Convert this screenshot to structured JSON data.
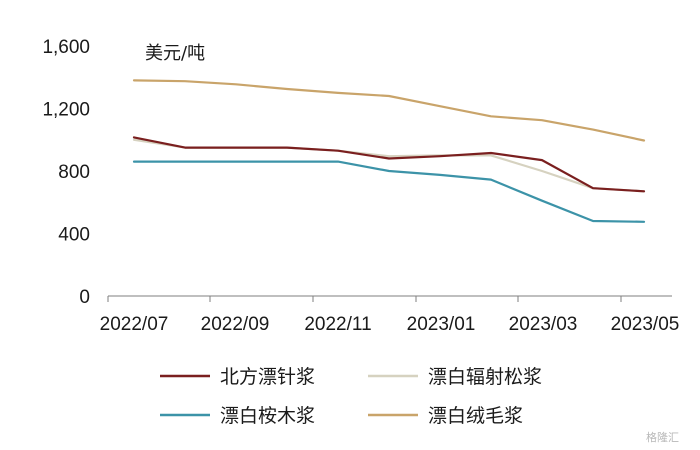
{
  "chart_data": {
    "type": "line",
    "unit_label": "美元/吨",
    "x": [
      "2022/07",
      "2022/08",
      "2022/09",
      "2022/10",
      "2022/11",
      "2022/12",
      "2023/01",
      "2023/02",
      "2023/03",
      "2023/04",
      "2023/05"
    ],
    "x_tick_labels": [
      "2022/07",
      "2022/09",
      "2022/11",
      "2023/01",
      "2023/03",
      "2023/05"
    ],
    "y_ticks": [
      "0",
      "400",
      "800",
      "1,200",
      "1,600"
    ],
    "ylim": [
      0,
      1600
    ],
    "grid": false,
    "legend_position": "bottom",
    "series": [
      {
        "name": "北方漂针浆",
        "color": "#7a1f1f",
        "values": [
          1015,
          950,
          950,
          950,
          930,
          880,
          895,
          915,
          870,
          690,
          670
        ]
      },
      {
        "name": "漂白辐射松浆",
        "color": "#d6d2c0",
        "values": [
          1000,
          950,
          950,
          950,
          930,
          895,
          900,
          900,
          800,
          690,
          670
        ]
      },
      {
        "name": "漂白桉木浆",
        "color": "#3c93a8",
        "values": [
          860,
          860,
          860,
          860,
          860,
          800,
          775,
          745,
          610,
          480,
          475
        ]
      },
      {
        "name": "漂白绒毛浆",
        "color": "#c9a46a",
        "values": [
          1380,
          1375,
          1355,
          1325,
          1300,
          1280,
          1215,
          1150,
          1125,
          1065,
          995
        ]
      }
    ]
  },
  "watermark": "格隆汇"
}
